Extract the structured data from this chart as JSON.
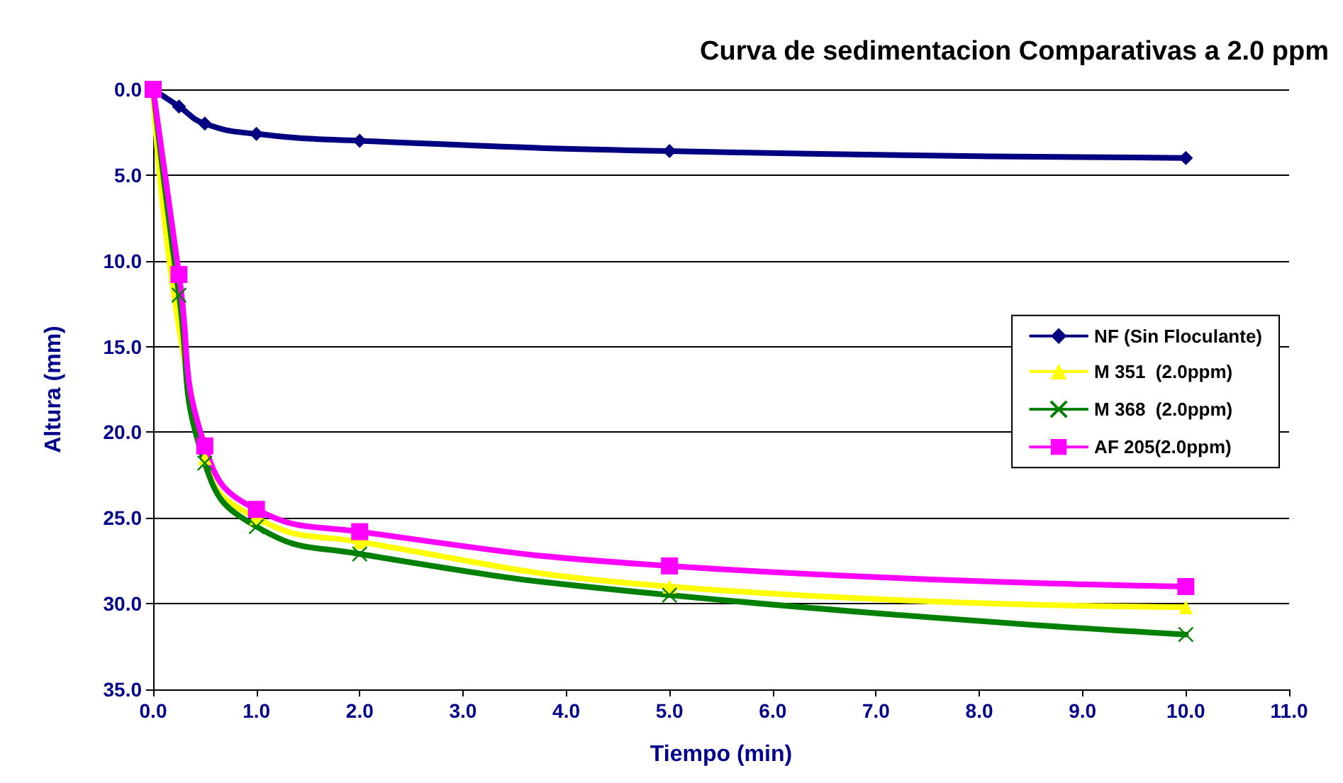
{
  "chart_data": {
    "type": "line",
    "title": "Curva de sedimentacion Comparativas a 2.0 ppm",
    "xlabel": "Tiempo (min)",
    "ylabel": "Altura (mm)",
    "x": [
      0,
      0.25,
      0.5,
      1,
      2,
      5,
      10
    ],
    "series": [
      {
        "name": "NF (Sin Floculante)",
        "color": "#000080",
        "marker": "diamond",
        "values": [
          0,
          1.0,
          2.0,
          2.6,
          3.0,
          3.6,
          4.0
        ]
      },
      {
        "name": "M 351  (2.0ppm)",
        "color": "#ffff00",
        "marker": "triangle",
        "values": [
          0,
          null,
          21.5,
          25.0,
          26.4,
          29.0,
          30.2
        ]
      },
      {
        "name": "M 368  (2.0ppm)",
        "color": "#008000",
        "marker": "cross",
        "values": [
          0,
          12.0,
          21.8,
          25.5,
          27.1,
          29.5,
          31.8
        ]
      },
      {
        "name": "AF 205(2.0ppm)",
        "color": "#ff00ff",
        "marker": "square",
        "values": [
          0,
          10.8,
          20.8,
          24.5,
          25.8,
          27.8,
          29.0
        ]
      }
    ],
    "xlim": [
      0,
      11
    ],
    "xticks": [
      {
        "value": 0,
        "label": "0.0"
      },
      {
        "value": 1,
        "label": "1.0"
      },
      {
        "value": 2,
        "label": "2.0"
      },
      {
        "value": 3,
        "label": "3.0"
      },
      {
        "value": 4,
        "label": "4.0"
      },
      {
        "value": 5,
        "label": "5.0"
      },
      {
        "value": 6,
        "label": "6.0"
      },
      {
        "value": 7,
        "label": "7.0"
      },
      {
        "value": 8,
        "label": "8.0"
      },
      {
        "value": 9,
        "label": "9.0"
      },
      {
        "value": 10,
        "label": "10.0"
      },
      {
        "value": 11,
        "label": "11.0"
      }
    ],
    "ylim": [
      35,
      0
    ],
    "yticks": [
      {
        "value": 0,
        "label": "0.0"
      },
      {
        "value": 5,
        "label": "5.0"
      },
      {
        "value": 10,
        "label": "10.0"
      },
      {
        "value": 15,
        "label": "15.0"
      },
      {
        "value": 20,
        "label": "20.0"
      },
      {
        "value": 25,
        "label": "25.0"
      },
      {
        "value": 30,
        "label": "30.0"
      },
      {
        "value": 35,
        "label": "35.0"
      }
    ],
    "grid": "y",
    "legend": "right",
    "line_style": "solid"
  }
}
